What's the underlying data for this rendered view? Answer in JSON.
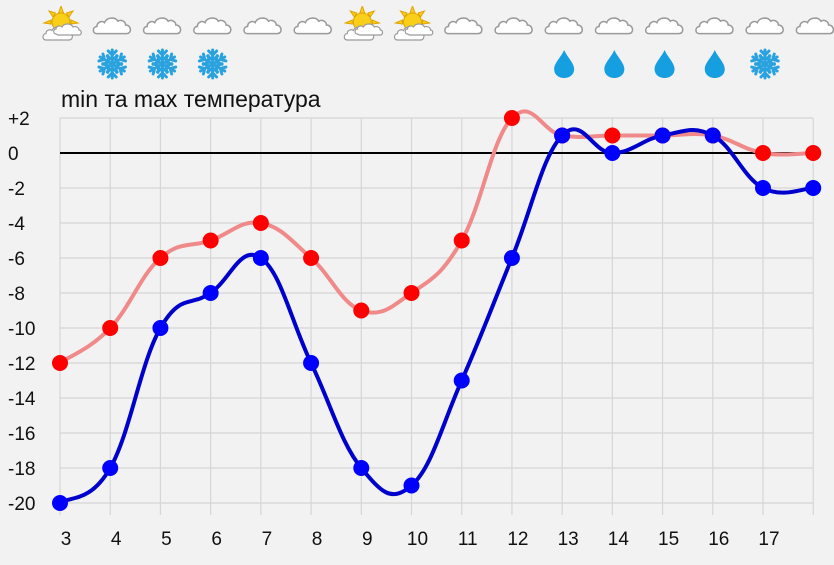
{
  "chart_data": {
    "type": "line",
    "title": "min та max температура",
    "xlabel": "",
    "ylabel": "",
    "x": [
      3,
      4,
      5,
      6,
      7,
      8,
      9,
      10,
      11,
      12,
      13,
      14,
      15,
      16,
      17,
      18
    ],
    "x_tick_labels": [
      "3",
      "4",
      "5",
      "6",
      "7",
      "8",
      "9",
      "10",
      "11",
      "12",
      "13",
      "14",
      "15",
      "16",
      "17"
    ],
    "y_tick_labels": [
      "+2",
      "0",
      "-2",
      "-4",
      "-6",
      "-8",
      "-10",
      "-12",
      "-14",
      "-16",
      "-18",
      "-20"
    ],
    "y_ticks": [
      2,
      0,
      -2,
      -4,
      -6,
      -8,
      -10,
      -12,
      -14,
      -16,
      -18,
      -20
    ],
    "ylim": [
      -20,
      2
    ],
    "grid": true,
    "zero_line": true,
    "series": [
      {
        "name": "max",
        "line_color": "#f08a8a",
        "marker_color": "#ff0000",
        "values": [
          -12,
          -10,
          -6,
          -5,
          -4,
          -6,
          -9,
          -8,
          -5,
          2,
          1,
          1,
          1,
          1,
          0,
          0
        ]
      },
      {
        "name": "min",
        "line_color": "#0000cc",
        "marker_color": "#0000ff",
        "values": [
          -20,
          -18,
          -10,
          -8,
          -6,
          -12,
          -18,
          -19,
          -13,
          -6,
          1,
          0,
          1,
          1,
          -2,
          -2
        ]
      }
    ],
    "weather_icons": {
      "sky": [
        "sun-cloud",
        "cloud",
        "cloud",
        "cloud",
        "cloud",
        "cloud",
        "sun-cloud",
        "sun-cloud",
        "cloud",
        "cloud",
        "cloud",
        "cloud",
        "cloud",
        "cloud",
        "cloud",
        "cloud"
      ],
      "precipitation": [
        "",
        "",
        "snow",
        "snow",
        "snow",
        "",
        "",
        "",
        "",
        "",
        "",
        "rain",
        "rain",
        "rain",
        "rain",
        "snow"
      ]
    }
  },
  "colors": {
    "background": "#f2f2f2",
    "grid": "#d6d6d6",
    "zero_line": "#000000",
    "sun": "#f7c600",
    "cloud_stroke": "#999999",
    "snow": "#2aa2e0",
    "rain": "#159ee0"
  }
}
